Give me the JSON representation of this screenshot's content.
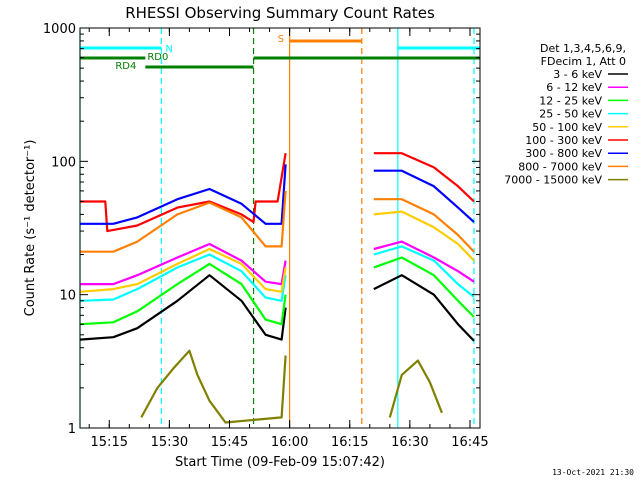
{
  "chart_data": {
    "type": "line",
    "title": "RHESSI Observing Summary Count Rates",
    "xlabel": "Start Time (09-Feb-09 15:07:42)",
    "ylabel": "Count Rate (s⁻¹ detector⁻¹)",
    "yscale": "log",
    "ylim": [
      1,
      1000
    ],
    "xlim": [
      "15:07:42",
      "16:47:30"
    ],
    "xticks": [
      "15:15",
      "15:30",
      "15:45",
      "16:00",
      "16:15",
      "16:30",
      "16:45"
    ],
    "yticks": [
      "1",
      "10",
      "100",
      "1000"
    ],
    "legend_header": [
      "Det 1,3,4,5,6,9,",
      "FDecim 1, Att 0"
    ],
    "legend_placement": "right",
    "series": [
      {
        "name": "3 - 6 keV",
        "color": "#000000",
        "points": [
          [
            "15:07:42",
            4.6
          ],
          [
            "15:16",
            4.8
          ],
          [
            "15:22",
            5.6
          ],
          [
            "15:32",
            9
          ],
          [
            "15:40",
            14
          ],
          [
            "15:48",
            9
          ],
          [
            "15:54",
            5
          ],
          [
            "15:58",
            4.6
          ],
          [
            "15:59",
            8
          ],
          [
            "16:00",
            null
          ],
          [
            "16:18",
            null
          ],
          [
            "16:21",
            11
          ],
          [
            "16:28",
            14
          ],
          [
            "16:36",
            10
          ],
          [
            "16:42",
            6
          ],
          [
            "16:46",
            4.5
          ]
        ]
      },
      {
        "name": "6 - 12 keV",
        "color": "#ff00ff",
        "points": [
          [
            "15:07:42",
            12
          ],
          [
            "15:16",
            12
          ],
          [
            "15:22",
            14
          ],
          [
            "15:32",
            19
          ],
          [
            "15:40",
            24
          ],
          [
            "15:48",
            18
          ],
          [
            "15:54",
            12.5
          ],
          [
            "15:58",
            12
          ],
          [
            "15:59",
            18
          ],
          [
            "16:00",
            null
          ],
          [
            "16:18",
            null
          ],
          [
            "16:21",
            22
          ],
          [
            "16:28",
            25
          ],
          [
            "16:36",
            19
          ],
          [
            "16:42",
            15
          ],
          [
            "16:46",
            12.5
          ]
        ]
      },
      {
        "name": "12 - 25 keV",
        "color": "#00ff00",
        "points": [
          [
            "15:07:42",
            6
          ],
          [
            "15:16",
            6.2
          ],
          [
            "15:22",
            7.5
          ],
          [
            "15:32",
            12
          ],
          [
            "15:40",
            17
          ],
          [
            "15:48",
            12
          ],
          [
            "15:54",
            6.5
          ],
          [
            "15:58",
            6
          ],
          [
            "15:59",
            10
          ],
          [
            "16:00",
            null
          ],
          [
            "16:18",
            null
          ],
          [
            "16:21",
            16
          ],
          [
            "16:28",
            19
          ],
          [
            "16:36",
            14
          ],
          [
            "16:42",
            9
          ],
          [
            "16:46",
            6.8
          ]
        ]
      },
      {
        "name": "25 - 50 keV",
        "color": "#00ffff",
        "points": [
          [
            "15:07:42",
            9
          ],
          [
            "15:16",
            9.2
          ],
          [
            "15:22",
            11
          ],
          [
            "15:32",
            16
          ],
          [
            "15:40",
            20
          ],
          [
            "15:48",
            15
          ],
          [
            "15:54",
            9.5
          ],
          [
            "15:58",
            9
          ],
          [
            "15:59",
            14
          ],
          [
            "16:00",
            null
          ],
          [
            "16:18",
            null
          ],
          [
            "16:21",
            20
          ],
          [
            "16:28",
            23
          ],
          [
            "16:36",
            18
          ],
          [
            "16:42",
            12
          ],
          [
            "16:46",
            9.6
          ]
        ]
      },
      {
        "name": "50 - 100 keV",
        "color": "#ffcc00",
        "points": [
          [
            "15:07:42",
            10.5
          ],
          [
            "15:16",
            11
          ],
          [
            "15:22",
            12
          ],
          [
            "15:32",
            17
          ],
          [
            "15:40",
            22
          ],
          [
            "15:48",
            17
          ],
          [
            "15:54",
            11
          ],
          [
            "15:58",
            10.5
          ],
          [
            "15:59",
            16
          ],
          [
            "16:00",
            null
          ],
          [
            "16:18",
            null
          ],
          [
            "16:21",
            40
          ],
          [
            "16:28",
            42
          ],
          [
            "16:36",
            32
          ],
          [
            "16:42",
            24
          ],
          [
            "16:46",
            18
          ]
        ]
      },
      {
        "name": "100 - 300 keV",
        "color": "#ff0000",
        "points": [
          [
            "15:07:42",
            50
          ],
          [
            "15:14",
            50
          ],
          [
            "15:14.5",
            30
          ],
          [
            "15:22",
            33
          ],
          [
            "15:32",
            45
          ],
          [
            "15:40",
            50
          ],
          [
            "15:48",
            40
          ],
          [
            "15:51",
            35
          ],
          [
            "15:51.5",
            50
          ],
          [
            "15:57",
            50
          ],
          [
            "15:59",
            115
          ],
          [
            "16:00",
            null
          ],
          [
            "16:18",
            null
          ],
          [
            "16:21",
            115
          ],
          [
            "16:28",
            115
          ],
          [
            "16:36",
            90
          ],
          [
            "16:42",
            65
          ],
          [
            "16:46",
            50
          ]
        ]
      },
      {
        "name": "300 - 800 keV",
        "color": "#0000ff",
        "points": [
          [
            "15:07:42",
            34
          ],
          [
            "15:16",
            34
          ],
          [
            "15:22",
            38
          ],
          [
            "15:32",
            52
          ],
          [
            "15:40",
            62
          ],
          [
            "15:48",
            48
          ],
          [
            "15:54",
            34
          ],
          [
            "15:58",
            34
          ],
          [
            "15:59",
            95
          ],
          [
            "16:00",
            null
          ],
          [
            "16:18",
            null
          ],
          [
            "16:21",
            85
          ],
          [
            "16:28",
            85
          ],
          [
            "16:36",
            65
          ],
          [
            "16:42",
            45
          ],
          [
            "16:46",
            35
          ]
        ]
      },
      {
        "name": "800 - 7000 keV",
        "color": "#ff8000",
        "points": [
          [
            "15:07:42",
            21
          ],
          [
            "15:16",
            21
          ],
          [
            "15:22",
            25
          ],
          [
            "15:32",
            40
          ],
          [
            "15:40",
            49
          ],
          [
            "15:48",
            38
          ],
          [
            "15:54",
            23
          ],
          [
            "15:58",
            23
          ],
          [
            "15:59",
            60
          ],
          [
            "16:00",
            null
          ],
          [
            "16:18",
            null
          ],
          [
            "16:21",
            52
          ],
          [
            "16:28",
            52
          ],
          [
            "16:36",
            40
          ],
          [
            "16:42",
            28
          ],
          [
            "16:46",
            21
          ]
        ]
      },
      {
        "name": "7000 - 15000 keV",
        "color": "#808000",
        "points": [
          [
            "15:23",
            1.2
          ],
          [
            "15:27",
            2
          ],
          [
            "15:31",
            2.8
          ],
          [
            "15:35",
            3.8
          ],
          [
            "15:37",
            2.5
          ],
          [
            "15:40",
            1.6
          ],
          [
            "15:44",
            1.1
          ],
          [
            "15:58",
            1.2
          ],
          [
            "15:59",
            3.5
          ],
          [
            "16:00",
            null
          ],
          [
            "16:25",
            1.2
          ],
          [
            "16:28",
            2.5
          ],
          [
            "16:32",
            3.2
          ],
          [
            "16:35",
            2.2
          ],
          [
            "16:38",
            1.3
          ]
        ]
      }
    ],
    "annotations": [
      {
        "label": "N",
        "color": "#00ffff",
        "start": "15:07:42",
        "end": "15:28"
      },
      {
        "label": "RD0",
        "color": "#008000",
        "start": "15:07:42",
        "end": "15:24"
      },
      {
        "label": "RD4",
        "color": "#008000",
        "start": "15:24",
        "end": "15:51"
      },
      {
        "label": "",
        "color": "#008000",
        "start": "15:51",
        "end": "16:47:30"
      },
      {
        "label": "S",
        "color": "#ff8000",
        "start": "16:00",
        "end": "16:18"
      },
      {
        "label": "",
        "color": "#00ffff",
        "start": "16:27",
        "end": "16:47:30"
      }
    ],
    "vertical_markers": [
      {
        "time": "15:07:42",
        "color": "#00ffff",
        "style": "solid"
      },
      {
        "time": "15:28",
        "color": "#00ffff",
        "style": "dashed"
      },
      {
        "time": "15:51",
        "color": "#008000",
        "style": "dashed"
      },
      {
        "time": "16:00",
        "color": "#ff8000",
        "style": "solid"
      },
      {
        "time": "16:18",
        "color": "#ff8000",
        "style": "dashed"
      },
      {
        "time": "16:27",
        "color": "#00ffff",
        "style": "solid"
      },
      {
        "time": "16:46",
        "color": "#00ffff",
        "style": "dashed"
      }
    ]
  },
  "footer": {
    "timestamp": "13-Oct-2021 21:30"
  }
}
